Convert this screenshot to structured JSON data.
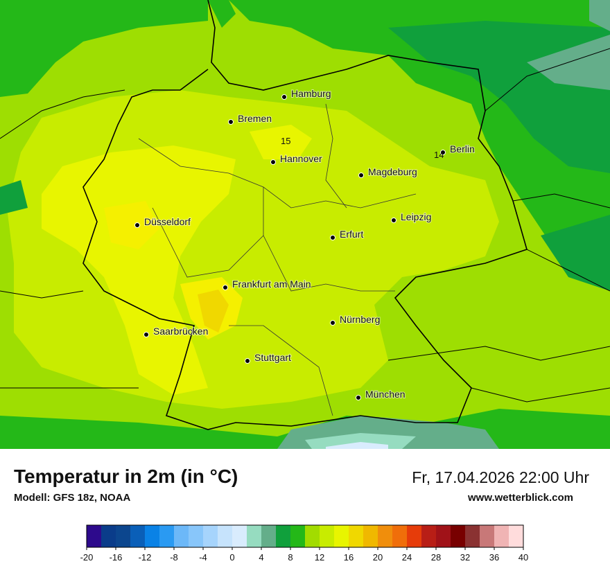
{
  "map": {
    "cities": [
      {
        "name": "Hamburg"
      },
      {
        "name": "Bremen"
      },
      {
        "name": "Hannover"
      },
      {
        "name": "Berlin"
      },
      {
        "name": "Magdeburg"
      },
      {
        "name": "Leipzig"
      },
      {
        "name": "Düsseldorf"
      },
      {
        "name": "Erfurt"
      },
      {
        "name": "Frankfurt am Main"
      },
      {
        "name": "Nürnberg"
      },
      {
        "name": "Saarbrücken"
      },
      {
        "name": "Stuttgart"
      },
      {
        "name": "München"
      }
    ],
    "contour_labels": [
      "15",
      "14"
    ]
  },
  "footer": {
    "title": "Temperatur in 2m (in °C)",
    "model": "Modell: GFS 18z, NOAA",
    "datetime": "Fr, 17.04.2026 22:00 Uhr",
    "website": "www.wetterblick.com"
  },
  "legend": {
    "range": [
      -20,
      40
    ],
    "ticks": [
      -20,
      -16,
      -12,
      -8,
      -4,
      0,
      4,
      8,
      12,
      16,
      20,
      24,
      28,
      32,
      36,
      40
    ],
    "colors": [
      "#2d0a8c",
      "#0a3c8a",
      "#0c468e",
      "#0a5fb8",
      "#0a82e6",
      "#2a9af2",
      "#6cb8f8",
      "#88c6fa",
      "#a6d4fc",
      "#c6e3fc",
      "#d9ecfd",
      "#96dcc0",
      "#64ae8a",
      "#10a03c",
      "#24b818",
      "#a2dc00",
      "#c8ec00",
      "#e8f500",
      "#f0d800",
      "#f0b800",
      "#f08e0c",
      "#f06e0a",
      "#e63c0a",
      "#b81e16",
      "#a01218",
      "#780000",
      "#8a3232",
      "#c87878",
      "#f0b4b4",
      "#ffdcdc"
    ]
  }
}
